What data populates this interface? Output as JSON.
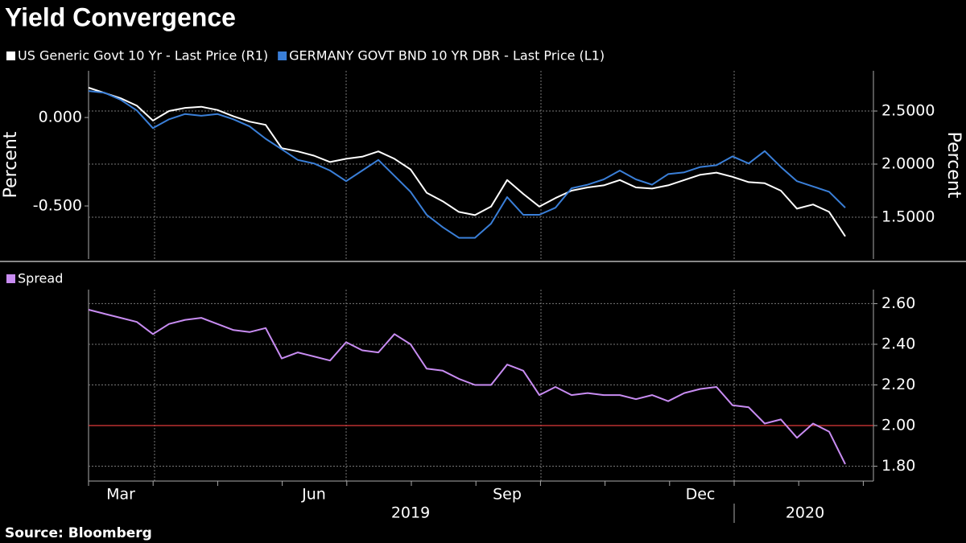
{
  "source": "Source: Bloomberg",
  "chart_data": [
    {
      "type": "line",
      "title": "Yield Convergence",
      "y_label": "Percent",
      "y2_label": "Percent",
      "ylim": [
        -0.8,
        0.264
      ],
      "yticks": [
        {
          "value": 0,
          "label": "0.000"
        },
        {
          "value": -0.5,
          "label": "-0.500"
        }
      ],
      "y2lim": [
        1.106,
        2.879
      ],
      "y2ticks": [
        {
          "value": 2.5,
          "label": "2.5000"
        },
        {
          "value": 2.0,
          "label": "2.0000"
        },
        {
          "value": 1.5,
          "label": "1.5000"
        }
      ],
      "grid": true,
      "series": [
        {
          "name": "US Generic Govt 10 Yr - Last Price (R1)",
          "color": "#ffffff",
          "axis": "y2",
          "values": [
            2.72,
            2.67,
            2.62,
            2.55,
            2.41,
            2.5,
            2.53,
            2.54,
            2.51,
            2.45,
            2.4,
            2.37,
            2.15,
            2.12,
            2.08,
            2.02,
            2.05,
            2.07,
            2.12,
            2.05,
            1.95,
            1.73,
            1.65,
            1.55,
            1.52,
            1.6,
            1.85,
            1.72,
            1.6,
            1.68,
            1.75,
            1.78,
            1.8,
            1.85,
            1.78,
            1.77,
            1.8,
            1.85,
            1.9,
            1.92,
            1.88,
            1.83,
            1.82,
            1.75,
            1.58,
            1.62,
            1.55,
            1.32
          ]
        },
        {
          "name": "GERMANY GOVT BND 10 YR DBR - Last Price (L1)",
          "color": "#3a7fd8",
          "values": [
            0.15,
            0.14,
            0.1,
            0.04,
            -0.06,
            -0.01,
            0.02,
            0.01,
            0.02,
            -0.01,
            -0.05,
            -0.12,
            -0.18,
            -0.24,
            -0.26,
            -0.3,
            -0.36,
            -0.3,
            -0.24,
            -0.33,
            -0.42,
            -0.55,
            -0.62,
            -0.68,
            -0.68,
            -0.6,
            -0.45,
            -0.55,
            -0.55,
            -0.51,
            -0.4,
            -0.38,
            -0.35,
            -0.3,
            -0.35,
            -0.38,
            -0.32,
            -0.31,
            -0.28,
            -0.27,
            -0.22,
            -0.26,
            -0.19,
            -0.28,
            -0.36,
            -0.39,
            -0.42,
            -0.51
          ]
        }
      ]
    },
    {
      "type": "line",
      "categories": [
        null,
        null,
        "Mar",
        null,
        null,
        null,
        null,
        null,
        null,
        null,
        null,
        null,
        null,
        null,
        "Jun",
        null,
        null,
        null,
        null,
        null,
        null,
        null,
        null,
        null,
        null,
        null,
        "Sep",
        null,
        null,
        null,
        null,
        null,
        null,
        null,
        null,
        null,
        null,
        null,
        "Dec",
        null,
        null,
        null,
        null,
        null,
        null,
        null,
        null,
        null
      ],
      "year_labels": [
        "2019",
        "2020"
      ],
      "ylim": [
        1.727,
        2.669
      ],
      "yticks": [
        {
          "value": 2.6,
          "label": "2.60"
        },
        {
          "value": 2.4,
          "label": "2.40"
        },
        {
          "value": 2.2,
          "label": "2.20"
        },
        {
          "value": 2.0,
          "label": "2.00"
        },
        {
          "value": 1.8,
          "label": "1.80"
        }
      ],
      "grid": true,
      "reference_line": {
        "value": 2.0,
        "color": "#e03a3a"
      },
      "series": [
        {
          "name": "Spread",
          "color": "#c88cf2",
          "values": [
            2.57,
            2.55,
            2.53,
            2.51,
            2.45,
            2.5,
            2.52,
            2.53,
            2.5,
            2.47,
            2.46,
            2.48,
            2.33,
            2.36,
            2.34,
            2.32,
            2.41,
            2.37,
            2.36,
            2.45,
            2.4,
            2.28,
            2.27,
            2.23,
            2.2,
            2.2,
            2.3,
            2.27,
            2.15,
            2.19,
            2.15,
            2.16,
            2.15,
            2.15,
            2.13,
            2.15,
            2.12,
            2.16,
            2.18,
            2.19,
            2.1,
            2.09,
            2.01,
            2.03,
            1.94,
            2.01,
            1.97,
            1.81
          ]
        }
      ]
    }
  ]
}
